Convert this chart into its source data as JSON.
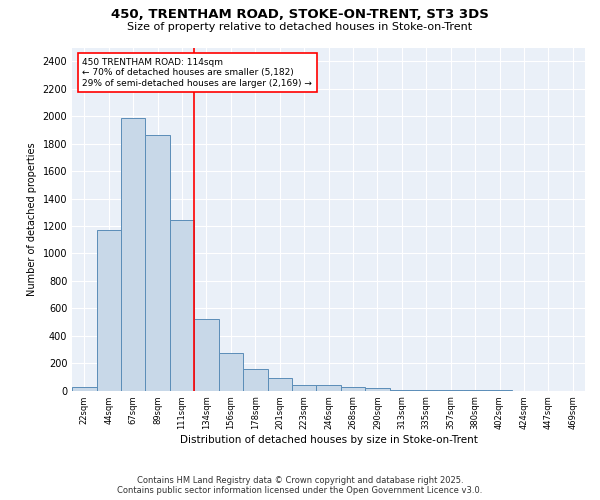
{
  "title_line1": "450, TRENTHAM ROAD, STOKE-ON-TRENT, ST3 3DS",
  "title_line2": "Size of property relative to detached houses in Stoke-on-Trent",
  "xlabel": "Distribution of detached houses by size in Stoke-on-Trent",
  "ylabel": "Number of detached properties",
  "categories": [
    "22sqm",
    "44sqm",
    "67sqm",
    "89sqm",
    "111sqm",
    "134sqm",
    "156sqm",
    "178sqm",
    "201sqm",
    "223sqm",
    "246sqm",
    "268sqm",
    "290sqm",
    "313sqm",
    "335sqm",
    "357sqm",
    "380sqm",
    "402sqm",
    "424sqm",
    "447sqm",
    "469sqm"
  ],
  "values": [
    25,
    1170,
    1990,
    1860,
    1240,
    520,
    275,
    155,
    90,
    45,
    40,
    30,
    18,
    8,
    5,
    3,
    2,
    2,
    1,
    1,
    1
  ],
  "bar_color": "#c8d8e8",
  "bar_edge_color": "#5b8db8",
  "vline_x_index": 4,
  "vline_color": "red",
  "annotation_text": "450 TRENTHAM ROAD: 114sqm\n← 70% of detached houses are smaller (5,182)\n29% of semi-detached houses are larger (2,169) →",
  "annotation_box_color": "white",
  "annotation_box_edge": "red",
  "ylim": [
    0,
    2500
  ],
  "yticks": [
    0,
    200,
    400,
    600,
    800,
    1000,
    1200,
    1400,
    1600,
    1800,
    2000,
    2200,
    2400
  ],
  "background_color": "#eaf0f8",
  "grid_color": "white",
  "footer_line1": "Contains HM Land Registry data © Crown copyright and database right 2025.",
  "footer_line2": "Contains public sector information licensed under the Open Government Licence v3.0."
}
